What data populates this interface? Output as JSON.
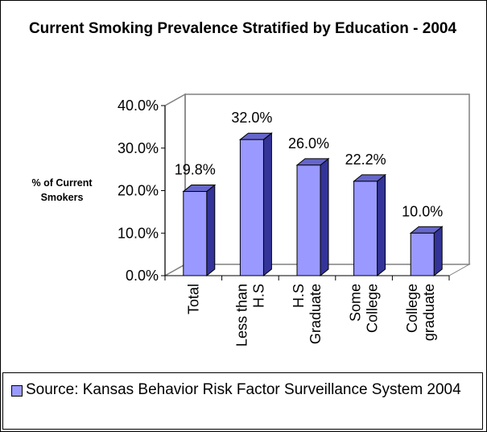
{
  "chart_data": {
    "type": "bar",
    "title": "Current Smoking Prevalence Stratified by Education - 2004",
    "ylabel": "% of Current Smokers",
    "xlabel": "",
    "categories": [
      "Total",
      "Less than H.S",
      "H.S Graduate",
      "Some College",
      "College graduate"
    ],
    "category_lines": [
      [
        "Total"
      ],
      [
        "Less than",
        "H.S"
      ],
      [
        "H.S",
        "Graduate"
      ],
      [
        "Some",
        "College"
      ],
      [
        "College",
        "graduate"
      ]
    ],
    "values": [
      19.8,
      32.0,
      26.0,
      22.2,
      10.0
    ],
    "data_labels": [
      "19.8%",
      "32.0%",
      "26.0%",
      "22.2%",
      "10.0%"
    ],
    "ylim": [
      0,
      40
    ],
    "yticks": [
      0,
      10,
      20,
      30,
      40
    ],
    "ytick_labels": [
      "0.0%",
      "10.0%",
      "20.0%",
      "30.0%",
      "40.0%"
    ],
    "legend": {
      "position": "bottom",
      "entry": "Source: Kansas Behavior Risk Factor Surveillance System 2004"
    },
    "colors": {
      "bar_front": "#9999ff",
      "bar_side": "#333399",
      "bar_top": "#6666cc",
      "wall": "#c0c0c0"
    }
  }
}
